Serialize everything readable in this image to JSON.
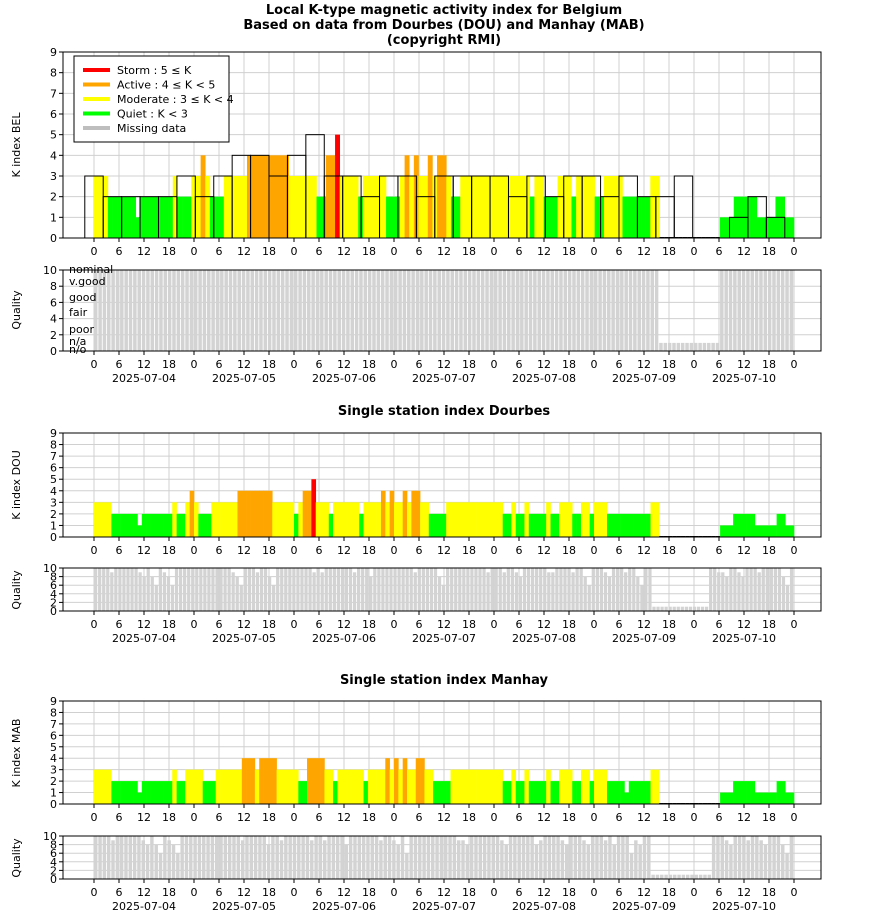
{
  "titles": {
    "main_line1": "Local K-type magnetic activity index for Belgium",
    "main_line2": "Based on data from Dourbes (DOU) and Manhay (MAB)",
    "main_line3": "(copyright RMI)",
    "dou": "Single station index Dourbes",
    "mab": "Single station index Manhay"
  },
  "axis_labels": {
    "k_bel": "K index BEL",
    "k_dou": "K index DOU",
    "k_mab": "K index MAB",
    "quality": "Quality"
  },
  "legend": [
    {
      "label": "Storm : 5 ≤ K",
      "color": "#ff0000"
    },
    {
      "label": "Active : 4 ≤ K < 5",
      "color": "#ffa500"
    },
    {
      "label": "Moderate : 3 ≤ K < 4",
      "color": "#ffff00"
    },
    {
      "label": "Quiet : K < 3",
      "color": "#00ff00"
    },
    {
      "label": "Missing data",
      "color": "#bebebe"
    }
  ],
  "quality_labels": [
    "nominal",
    "v.good",
    "good",
    "fair",
    "poor",
    "n/a",
    "n/o"
  ],
  "chart_data": {
    "type": "bar",
    "colors": {
      "storm": "#ff0000",
      "active": "#ffa500",
      "moderate": "#ffff00",
      "quiet": "#00ff00",
      "missing": "#bebebe",
      "quality": "#d3d3d3"
    },
    "k_ylim": [
      0,
      9
    ],
    "k_yticks": [
      "0",
      "1",
      "2",
      "3",
      "4",
      "5",
      "6",
      "7",
      "8",
      "9"
    ],
    "quality_ylim": [
      0,
      10
    ],
    "quality_yticks": [
      "0",
      "2",
      "4",
      "6",
      "8",
      "10"
    ],
    "x_tick_labels": [
      "0",
      "6",
      "12",
      "18",
      "0",
      "6",
      "12",
      "18",
      "0",
      "6",
      "12",
      "18",
      "0",
      "6",
      "12",
      "18",
      "0",
      "6",
      "12",
      "18",
      "0",
      "6",
      "12",
      "18",
      "0",
      "6",
      "12",
      "18",
      "0"
    ],
    "dates": [
      "2025-07-04",
      "2025-07-05",
      "2025-07-06",
      "2025-07-07",
      "2025-07-08",
      "2025-07-09",
      "2025-07-10"
    ],
    "bel_3h_blocks": [
      3,
      2,
      2,
      2,
      2,
      3,
      2,
      3,
      4,
      4,
      3,
      4,
      5,
      3,
      3,
      2,
      3,
      3,
      2,
      3,
      3,
      3,
      3,
      2,
      3,
      2,
      3,
      3,
      2,
      3,
      2,
      2,
      3,
      0,
      0,
      1,
      2,
      1
    ],
    "bel": [
      3,
      3,
      3,
      2,
      2,
      2,
      2,
      2,
      2,
      1,
      2,
      2,
      2,
      2,
      2,
      2,
      2,
      3,
      2,
      2,
      2,
      3,
      3,
      4,
      3,
      2,
      2,
      2,
      3,
      3,
      3,
      3,
      3,
      4,
      4,
      4,
      4,
      4,
      4,
      4,
      4,
      4,
      3,
      3,
      3,
      3,
      3,
      3,
      2,
      2,
      4,
      4,
      5,
      3,
      3,
      3,
      3,
      2,
      3,
      3,
      3,
      3,
      3,
      2,
      2,
      2,
      3,
      4,
      3,
      4,
      3,
      3,
      4,
      3,
      4,
      4,
      3,
      2,
      2,
      3,
      3,
      3,
      3,
      3,
      3,
      3,
      3,
      3,
      3,
      3,
      3,
      3,
      3,
      3,
      2,
      3,
      3,
      2,
      2,
      2,
      3,
      3,
      3,
      2,
      3,
      3,
      3,
      3,
      2,
      2,
      3,
      3,
      3,
      3,
      2,
      2,
      2,
      2,
      2,
      2,
      3,
      3,
      0,
      0,
      0,
      0,
      0,
      0,
      0,
      0,
      0,
      0,
      0,
      0,
      0,
      1,
      1,
      1,
      2,
      2,
      2,
      2,
      2,
      1,
      1,
      1,
      1,
      2,
      2,
      1,
      1
    ],
    "dou": [
      3,
      3,
      3,
      3,
      2,
      2,
      2,
      2,
      2,
      2,
      1,
      2,
      2,
      2,
      2,
      2,
      2,
      2,
      3,
      2,
      2,
      3,
      4,
      3,
      2,
      2,
      2,
      3,
      3,
      3,
      3,
      3,
      3,
      4,
      4,
      4,
      4,
      4,
      4,
      4,
      4,
      3,
      3,
      3,
      3,
      3,
      2,
      3,
      4,
      4,
      5,
      3,
      3,
      3,
      2,
      3,
      3,
      3,
      3,
      3,
      3,
      2,
      3,
      3,
      3,
      3,
      4,
      3,
      4,
      3,
      3,
      4,
      3,
      4,
      4,
      3,
      3,
      2,
      2,
      2,
      2,
      3,
      3,
      3,
      3,
      3,
      3,
      3,
      3,
      3,
      3,
      3,
      3,
      3,
      2,
      2,
      3,
      2,
      2,
      3,
      2,
      2,
      2,
      2,
      3,
      2,
      2,
      3,
      3,
      3,
      2,
      2,
      3,
      3,
      2,
      3,
      3,
      3,
      2,
      2,
      2,
      2,
      2,
      2,
      2,
      2,
      2,
      2,
      3,
      3,
      0,
      0,
      0,
      0,
      0,
      0,
      0,
      0,
      0,
      0,
      0,
      0,
      0,
      0,
      1,
      1,
      1,
      2,
      2,
      2,
      2,
      2,
      1,
      1,
      1,
      1,
      1,
      2,
      2,
      1,
      1
    ],
    "mab": [
      3,
      3,
      3,
      3,
      2,
      2,
      2,
      2,
      2,
      2,
      1,
      2,
      2,
      2,
      2,
      2,
      2,
      2,
      3,
      2,
      2,
      3,
      3,
      3,
      3,
      2,
      2,
      2,
      3,
      3,
      3,
      3,
      3,
      3,
      4,
      4,
      4,
      3,
      4,
      4,
      4,
      4,
      3,
      3,
      3,
      3,
      3,
      2,
      2,
      4,
      4,
      4,
      4,
      3,
      3,
      2,
      3,
      3,
      3,
      3,
      3,
      3,
      2,
      3,
      3,
      3,
      3,
      4,
      3,
      4,
      3,
      4,
      3,
      3,
      4,
      4,
      3,
      3,
      2,
      2,
      2,
      2,
      3,
      3,
      3,
      3,
      3,
      3,
      3,
      3,
      3,
      3,
      3,
      3,
      2,
      2,
      3,
      2,
      2,
      3,
      2,
      2,
      2,
      2,
      3,
      2,
      2,
      3,
      3,
      3,
      2,
      2,
      3,
      3,
      2,
      3,
      3,
      3,
      2,
      2,
      2,
      2,
      1,
      2,
      2,
      2,
      2,
      2,
      3,
      3,
      0,
      0,
      0,
      0,
      0,
      0,
      0,
      0,
      0,
      0,
      0,
      0,
      0,
      0,
      1,
      1,
      1,
      2,
      2,
      2,
      2,
      2,
      1,
      1,
      1,
      1,
      1,
      2,
      2,
      1,
      1
    ],
    "bel_quality": [
      10,
      10,
      10,
      10,
      10,
      10,
      10,
      10,
      10,
      10,
      10,
      10,
      10,
      10,
      10,
      10,
      10,
      10,
      10,
      10,
      10,
      10,
      10,
      10,
      10,
      10,
      10,
      10,
      10,
      10,
      10,
      10,
      10,
      10,
      10,
      10,
      10,
      10,
      10,
      10,
      10,
      10,
      10,
      10,
      10,
      10,
      10,
      10,
      10,
      10,
      10,
      10,
      10,
      10,
      10,
      10,
      10,
      10,
      10,
      10,
      10,
      10,
      10,
      10,
      10,
      10,
      10,
      10,
      10,
      10,
      10,
      10,
      10,
      10,
      10,
      10,
      10,
      10,
      10,
      10,
      10,
      10,
      10,
      10,
      10,
      10,
      10,
      10,
      10,
      10,
      10,
      10,
      10,
      10,
      10,
      10,
      10,
      10,
      10,
      10,
      10,
      10,
      10,
      10,
      10,
      10,
      10,
      10,
      10,
      10,
      10,
      10,
      10,
      10,
      10,
      10,
      10,
      10,
      10,
      10,
      10,
      10,
      10,
      10,
      10,
      10,
      10,
      10,
      10,
      10,
      1,
      1,
      1,
      1,
      1,
      1,
      1,
      1,
      1,
      1,
      1,
      1,
      1,
      1,
      10,
      10,
      10,
      10,
      10,
      10,
      10,
      10,
      10,
      10,
      10,
      10,
      10,
      10,
      10,
      10,
      10
    ],
    "dou_quality": [
      10,
      10,
      10,
      10,
      9,
      10,
      10,
      10,
      10,
      10,
      10,
      9,
      8,
      10,
      8,
      6,
      10,
      9,
      8,
      6,
      10,
      10,
      10,
      10,
      10,
      10,
      10,
      10,
      10,
      10,
      10,
      10,
      10,
      10,
      9,
      8,
      6,
      10,
      10,
      10,
      9,
      10,
      10,
      8,
      6,
      10,
      10,
      10,
      10,
      10,
      10,
      10,
      10,
      10,
      9,
      10,
      9,
      10,
      10,
      10,
      10,
      10,
      10,
      10,
      9,
      10,
      10,
      10,
      8,
      10,
      10,
      10,
      10,
      10,
      10,
      10,
      10,
      10,
      10,
      9,
      10,
      10,
      10,
      10,
      10,
      8,
      6,
      10,
      10,
      10,
      10,
      10,
      10,
      10,
      10,
      10,
      10,
      9,
      10,
      10,
      10,
      9,
      10,
      10,
      9,
      8,
      10,
      10,
      10,
      10,
      10,
      10,
      9,
      9,
      10,
      10,
      10,
      10,
      9,
      10,
      10,
      8,
      6,
      10,
      10,
      10,
      9,
      8,
      10,
      10,
      10,
      9,
      10,
      10,
      8,
      6,
      10,
      10,
      1,
      1,
      1,
      1,
      1,
      1,
      1,
      1,
      1,
      1,
      1,
      1,
      1,
      1,
      10,
      10,
      9,
      9,
      8,
      10,
      10,
      9,
      8,
      10,
      10,
      10,
      9,
      10,
      10,
      10,
      10,
      10,
      8,
      6,
      10
    ],
    "mab_quality": [
      10,
      10,
      10,
      10,
      9,
      10,
      10,
      10,
      10,
      10,
      10,
      9,
      8,
      10,
      8,
      6,
      10,
      9,
      8,
      6,
      10,
      10,
      10,
      10,
      10,
      10,
      10,
      10,
      10,
      10,
      10,
      10,
      10,
      10,
      9,
      10,
      10,
      10,
      10,
      10,
      8,
      10,
      10,
      9,
      10,
      10,
      10,
      10,
      10,
      10,
      9,
      10,
      10,
      9,
      10,
      10,
      10,
      10,
      8,
      10,
      10,
      10,
      10,
      10,
      10,
      10,
      9,
      10,
      10,
      9,
      8,
      10,
      6,
      10,
      10,
      10,
      10,
      10,
      10,
      10,
      10,
      10,
      10,
      10,
      9,
      9,
      8,
      10,
      10,
      10,
      10,
      10,
      10,
      10,
      9,
      8,
      10,
      10,
      10,
      10,
      10,
      10,
      8,
      9,
      10,
      10,
      10,
      10,
      9,
      8,
      10,
      10,
      10,
      9,
      8,
      10,
      10,
      10,
      9,
      10,
      8,
      10,
      10,
      10,
      6,
      9,
      8,
      10,
      10,
      1,
      1,
      1,
      1,
      1,
      1,
      1,
      1,
      1,
      1,
      1,
      1,
      1,
      1,
      10,
      10,
      10,
      9,
      8,
      10,
      10,
      10,
      9,
      10,
      10,
      9,
      8,
      10,
      10,
      10,
      8,
      6,
      10
    ]
  }
}
